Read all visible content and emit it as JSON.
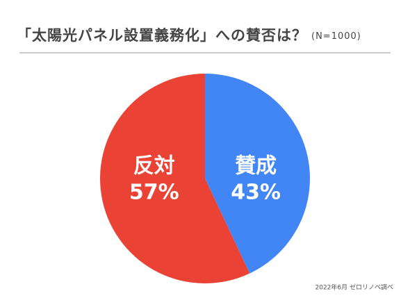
{
  "chart_data": {
    "type": "pie",
    "title": "「太陽光パネル設置義務化」への賛否は？",
    "subtitle": "(N=1000)",
    "categories": [
      "賛成",
      "反対"
    ],
    "values": [
      43,
      57
    ],
    "value_labels": [
      "43%",
      "57%"
    ],
    "colors": [
      "#4285f4",
      "#ea4335"
    ],
    "source": "2022年6月 ゼロリノベ調べ"
  }
}
